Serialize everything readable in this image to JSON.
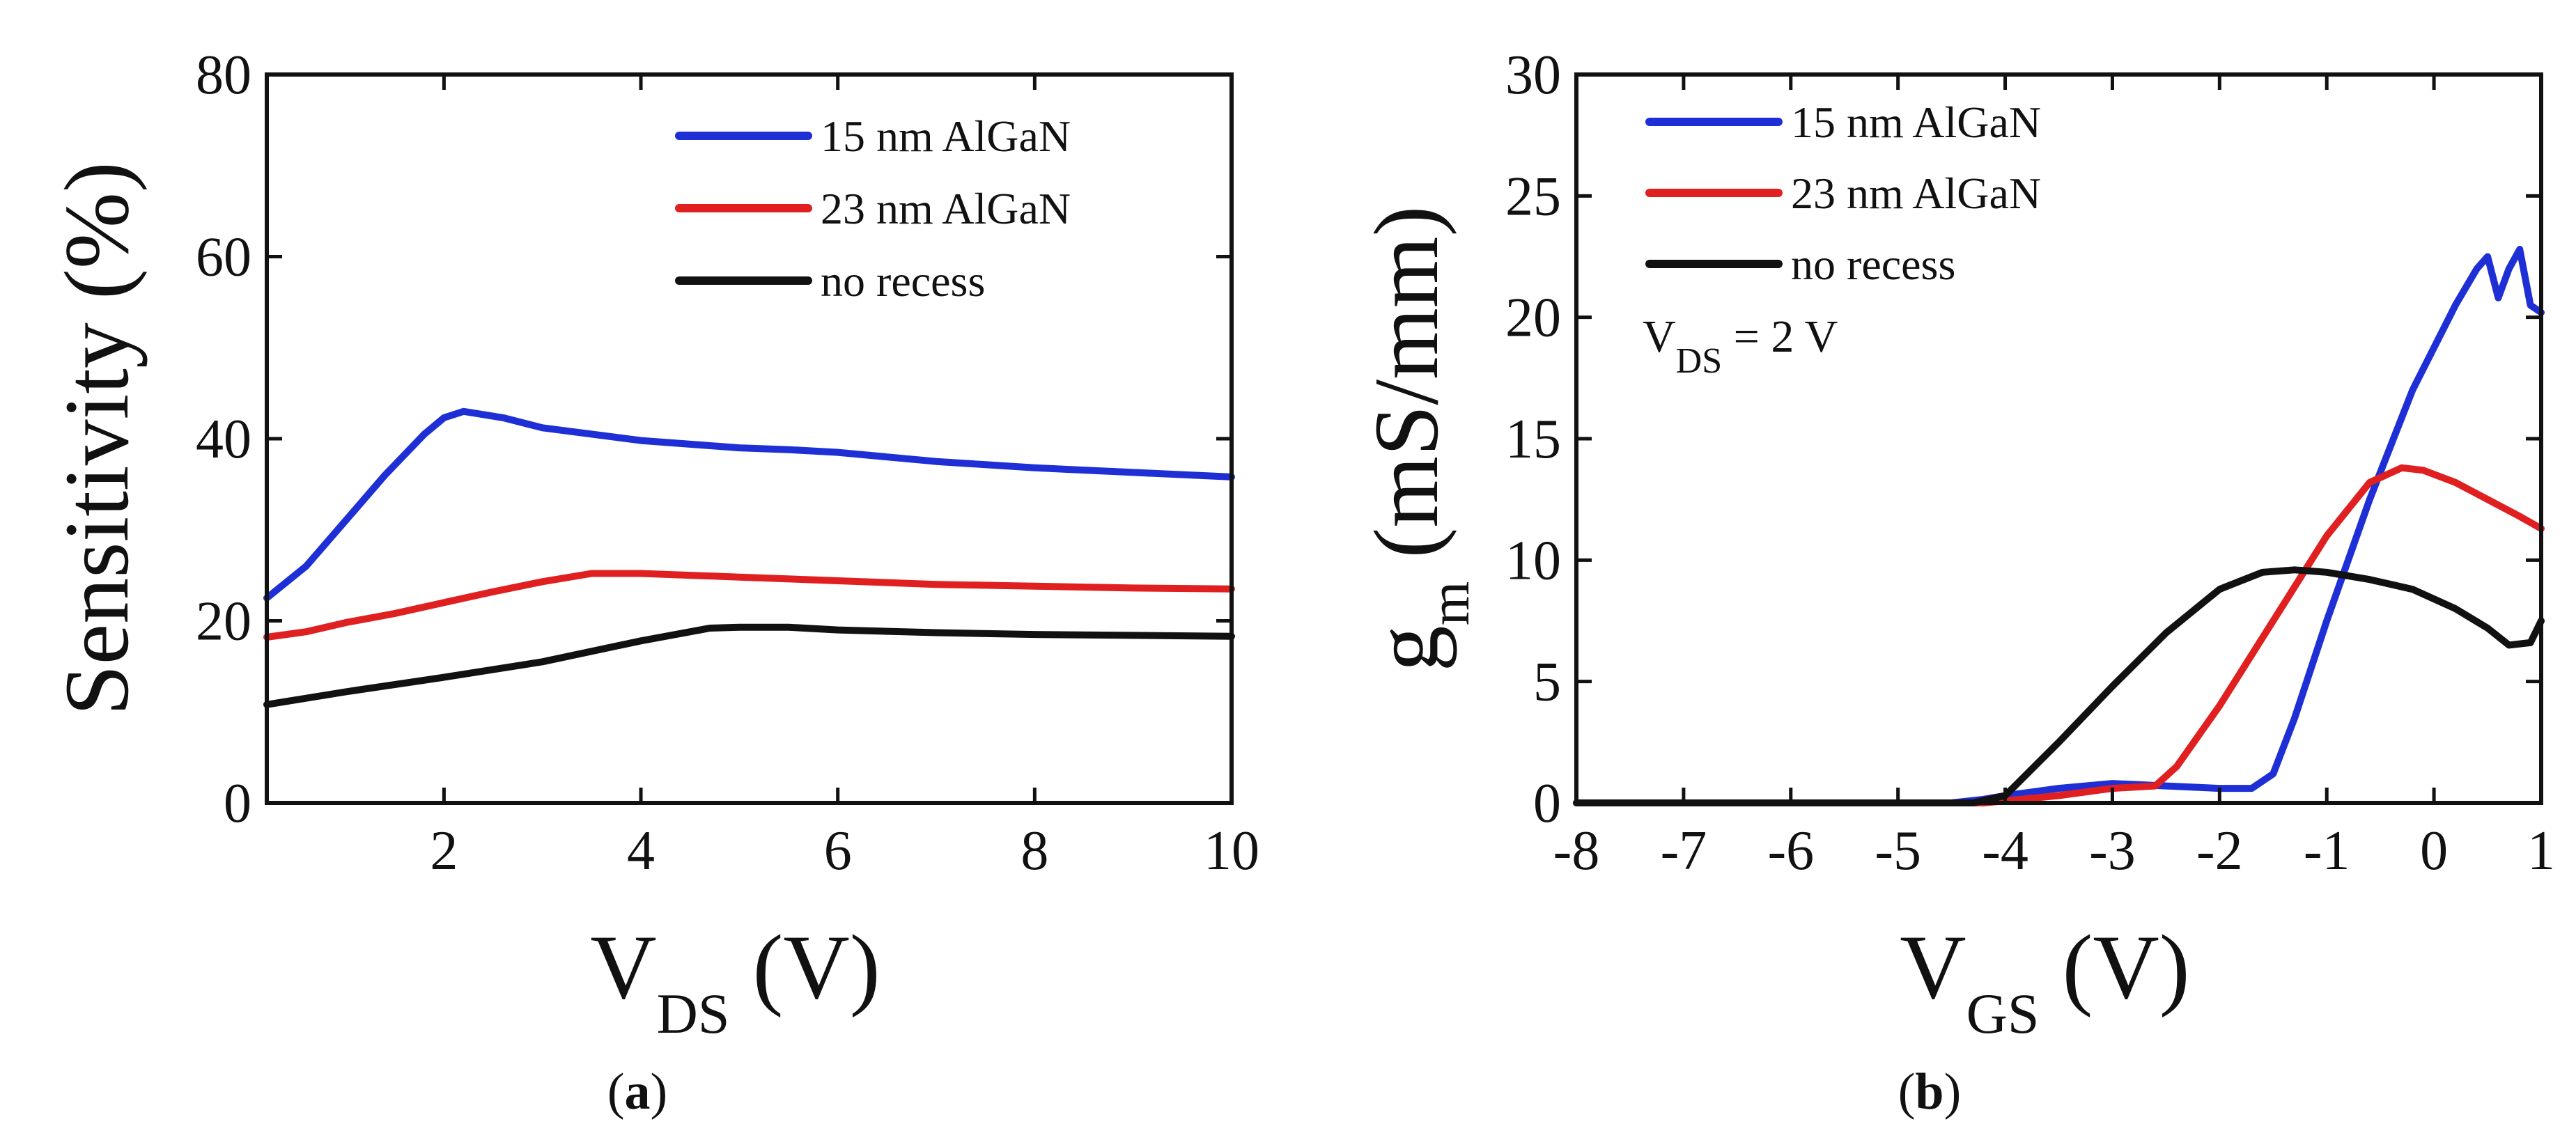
{
  "chart_data": [
    {
      "type": "line",
      "panel_label": "(a)",
      "panel_letter": "a",
      "ylabel": "Sensitivity (%)",
      "xlabel_main": "V",
      "xlabel_sub": "DS",
      "xlabel_unit": "(V)",
      "xlim": [
        0.2,
        10
      ],
      "ylim": [
        0,
        80
      ],
      "xticks": [
        2,
        4,
        6,
        8,
        10
      ],
      "xtick_labels": [
        "2",
        "4",
        "6",
        "8",
        "10"
      ],
      "yticks": [
        0,
        20,
        40,
        60,
        80
      ],
      "ytick_labels": [
        "0",
        "20",
        "40",
        "60",
        "80"
      ],
      "legend_position": "top-right",
      "series": [
        {
          "name": "15 nm AlGaN",
          "color": "#1f2fd6",
          "x": [
            0.2,
            0.6,
            1.0,
            1.4,
            1.8,
            2.0,
            2.2,
            2.6,
            3.0,
            4.0,
            5.0,
            5.5,
            6.0,
            7.0,
            8.0,
            9.0,
            10.0
          ],
          "y": [
            22.5,
            26,
            31,
            36,
            40.5,
            42.3,
            43,
            42.3,
            41.2,
            39.8,
            39,
            38.8,
            38.5,
            37.5,
            36.8,
            36.3,
            35.8
          ]
        },
        {
          "name": "23 nm AlGaN",
          "color": "#e02020",
          "x": [
            0.2,
            0.6,
            1.0,
            1.5,
            2.0,
            2.5,
            3.0,
            3.5,
            4.0,
            5.0,
            6.0,
            7.0,
            8.0,
            9.0,
            10.0
          ],
          "y": [
            18.2,
            18.8,
            19.8,
            20.8,
            22,
            23.2,
            24.3,
            25.2,
            25.2,
            24.8,
            24.4,
            24.0,
            23.8,
            23.6,
            23.5
          ]
        },
        {
          "name": "no recess",
          "color": "#111111",
          "x": [
            0.2,
            1.0,
            2.0,
            3.0,
            4.0,
            4.7,
            5.0,
            5.5,
            6.0,
            7.0,
            8.0,
            9.0,
            10.0
          ],
          "y": [
            10.8,
            12.2,
            13.8,
            15.5,
            17.8,
            19.2,
            19.3,
            19.3,
            19.0,
            18.7,
            18.5,
            18.4,
            18.3
          ]
        }
      ]
    },
    {
      "type": "line",
      "panel_label": "(b)",
      "panel_letter": "b",
      "ylabel_main": "g",
      "ylabel_sub": "m",
      "ylabel_unit": "(mS/mm)",
      "xlabel_main": "V",
      "xlabel_sub": "GS",
      "xlabel_unit": "(V)",
      "xlim": [
        -8,
        1
      ],
      "ylim": [
        0,
        30
      ],
      "xticks": [
        -8,
        -7,
        -6,
        -5,
        -4,
        -3,
        -2,
        -1,
        0,
        1
      ],
      "xtick_labels": [
        "-8",
        "-7",
        "-6",
        "-5",
        "-4",
        "-3",
        "-2",
        "-1",
        "0",
        "1"
      ],
      "yticks": [
        0,
        5,
        10,
        15,
        20,
        25,
        30
      ],
      "ytick_labels": [
        "0",
        "5",
        "10",
        "15",
        "20",
        "25",
        "30"
      ],
      "legend_position": "top-left",
      "annotation": {
        "main": "V",
        "sub": "DS",
        "rest": " = 2 V"
      },
      "series": [
        {
          "name": "15 nm AlGaN",
          "color": "#1f2fd6",
          "x": [
            -8,
            -4.5,
            -4.2,
            -4.0,
            -3.5,
            -3.0,
            -2.5,
            -2.0,
            -1.7,
            -1.5,
            -1.3,
            -1.0,
            -0.6,
            -0.2,
            0.2,
            0.4,
            0.5,
            0.6,
            0.7,
            0.8,
            0.9,
            1.0
          ],
          "y": [
            0,
            0,
            0.15,
            0.3,
            0.6,
            0.8,
            0.7,
            0.6,
            0.6,
            1.2,
            3.5,
            7.5,
            12.5,
            17.0,
            20.5,
            22.0,
            22.5,
            20.8,
            22.0,
            22.8,
            20.5,
            20.2
          ]
        },
        {
          "name": "23 nm AlGaN",
          "color": "#e02020",
          "x": [
            -8,
            -4.2,
            -3.5,
            -3.0,
            -2.6,
            -2.4,
            -2.0,
            -1.5,
            -1.0,
            -0.6,
            -0.3,
            -0.1,
            0.2,
            0.5,
            0.8,
            1.0
          ],
          "y": [
            0,
            0,
            0.3,
            0.6,
            0.7,
            1.5,
            4.0,
            7.5,
            11.0,
            13.2,
            13.8,
            13.7,
            13.2,
            12.5,
            11.8,
            11.3
          ]
        },
        {
          "name": "no recess",
          "color": "#111111",
          "x": [
            -8,
            -4.3,
            -4.0,
            -3.5,
            -3.0,
            -2.5,
            -2.0,
            -1.6,
            -1.3,
            -1.0,
            -0.6,
            -0.2,
            0.2,
            0.5,
            0.7,
            0.9,
            1.0
          ],
          "y": [
            0,
            0,
            0.3,
            2.5,
            4.8,
            7.0,
            8.8,
            9.5,
            9.6,
            9.5,
            9.2,
            8.8,
            8.0,
            7.2,
            6.5,
            6.6,
            7.5
          ]
        }
      ]
    }
  ]
}
